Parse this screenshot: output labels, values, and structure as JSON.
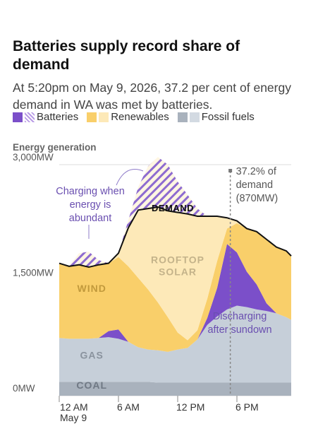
{
  "chart_data": {
    "type": "stacked_area",
    "title": "Batteries supply record share of demand",
    "subtitle": "At 5:20pm on May 9, 2026, 37.2 per cent of energy demand in WA was met by batteries.",
    "y_axis_label": "Energy generation",
    "legend": [
      {
        "label": "Batteries",
        "colors": [
          "#7b4fc9",
          "#b99be6"
        ]
      },
      {
        "label": "Renewables",
        "colors": [
          "#f9cf6a",
          "#fde9b8"
        ]
      },
      {
        "label": "Fossil fuels",
        "colors": [
          "#a9b2bd",
          "#d3dae2"
        ]
      }
    ],
    "x": [
      0,
      1,
      2,
      3,
      4,
      5,
      6,
      7,
      8,
      9,
      10,
      11,
      12,
      13,
      14,
      15,
      16,
      17,
      18,
      19,
      20,
      21,
      22,
      23,
      23.5
    ],
    "xlim": [
      0,
      23.5
    ],
    "xticks": [
      {
        "value": 0,
        "label": "12 AM"
      },
      {
        "value": 6,
        "label": "6 AM"
      },
      {
        "value": 12,
        "label": "12 PM"
      },
      {
        "value": 18,
        "label": "6 PM"
      }
    ],
    "x_sublabel": "May 9",
    "ylim": [
      0,
      3000
    ],
    "yticks": [
      {
        "value": 0,
        "label": "0MW"
      },
      {
        "value": 1500,
        "label": "1,500MW"
      },
      {
        "value": 3000,
        "label": "3,000MW"
      }
    ],
    "grid": true,
    "series": [
      {
        "name": "COAL",
        "color": "#a9b2bd",
        "values": [
          180,
          180,
          180,
          180,
          180,
          180,
          180,
          180,
          180,
          180,
          170,
          170,
          170,
          170,
          170,
          170,
          170,
          170,
          170,
          170,
          170,
          170,
          170,
          170,
          170
        ]
      },
      {
        "name": "GAS",
        "color": "#c6cfd9",
        "values": [
          570,
          560,
          560,
          560,
          570,
          580,
          560,
          520,
          450,
          420,
          420,
          400,
          430,
          450,
          560,
          750,
          860,
          950,
          1000,
          980,
          950,
          930,
          900,
          850,
          815
        ]
      },
      {
        "color": "#7b4fc9",
        "values": [
          0,
          0,
          0,
          0,
          0,
          80,
          120,
          0,
          0,
          0,
          0,
          0,
          0,
          0,
          0,
          90,
          370,
          850,
          690,
          460,
          325,
          100,
          0,
          0,
          0
        ]
      },
      {
        "name": "WIND",
        "color": "#f9cf6a",
        "values": [
          970,
          940,
          960,
          930,
          950,
          880,
          940,
          980,
          900,
          780,
          620,
          450,
          220,
          100,
          120,
          250,
          350,
          200,
          380,
          560,
          685,
          830,
          860,
          860,
          830
        ]
      },
      {
        "name": "ROOFTOP SOLAR",
        "color": "#fde9b8",
        "values": [
          0,
          0,
          0,
          0,
          0,
          0,
          50,
          500,
          880,
          1050,
          1240,
          1380,
          1560,
          1640,
          1480,
          1070,
          580,
          140,
          30,
          0,
          0,
          0,
          0,
          0,
          0
        ]
      },
      {
        "color": "#8d6bd0",
        "pattern": "hatch",
        "values": [
          0,
          0,
          150,
          200,
          60,
          0,
          0,
          100,
          300,
          550,
          650,
          600,
          400,
          250,
          100,
          0,
          0,
          0,
          0,
          0,
          0,
          0,
          0,
          0,
          0
        ]
      }
    ],
    "line": {
      "name": "DEMAND",
      "color": "#111111",
      "values": [
        1720,
        1680,
        1700,
        1670,
        1700,
        1720,
        1850,
        2180,
        2410,
        2430,
        2450,
        2400,
        2380,
        2360,
        2330,
        2330,
        2330,
        2310,
        2270,
        2170,
        2130,
        2030,
        1930,
        1880,
        1815
      ]
    },
    "annotations": [
      {
        "lines": [
          "Charging when",
          "energy is",
          "abundant"
        ]
      },
      {
        "lines": [
          "Discharging",
          "after sundown"
        ]
      },
      {
        "lines": [
          "37.2% of",
          "demand",
          "(870MW)"
        ],
        "x": 17.33
      }
    ]
  }
}
